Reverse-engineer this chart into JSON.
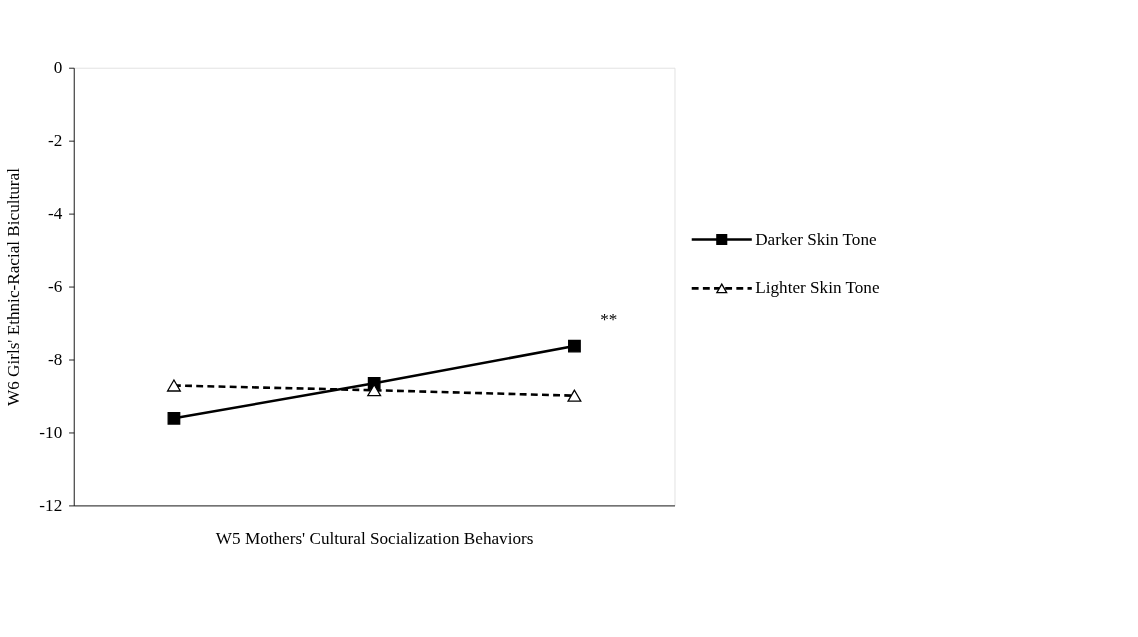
{
  "chart_data": {
    "type": "line",
    "xlabel": "W5 Mothers' Cultural Socialization Behaviors",
    "ylabel": "W6 Girls' Ethnic-Racial Bicultural",
    "categories": [
      null,
      null,
      null
    ],
    "series": [
      {
        "name": "Darker Skin Tone",
        "color": "#000000",
        "marker": "square",
        "line_style": "solid",
        "values": [
          -9.61,
          -8.65,
          -7.63
        ]
      },
      {
        "name": "Lighter Skin Tone",
        "color": "#000000",
        "marker": "triangle",
        "line_style": "dashed",
        "values": [
          -8.71,
          -8.84,
          -8.99
        ]
      }
    ],
    "ylim": [
      -12,
      0
    ],
    "yticks": [
      0,
      -2,
      -4,
      -6,
      -8,
      -10,
      -12
    ],
    "grid": false,
    "legend": "right",
    "tick_labels": "y",
    "annotations": [
      "**"
    ]
  }
}
